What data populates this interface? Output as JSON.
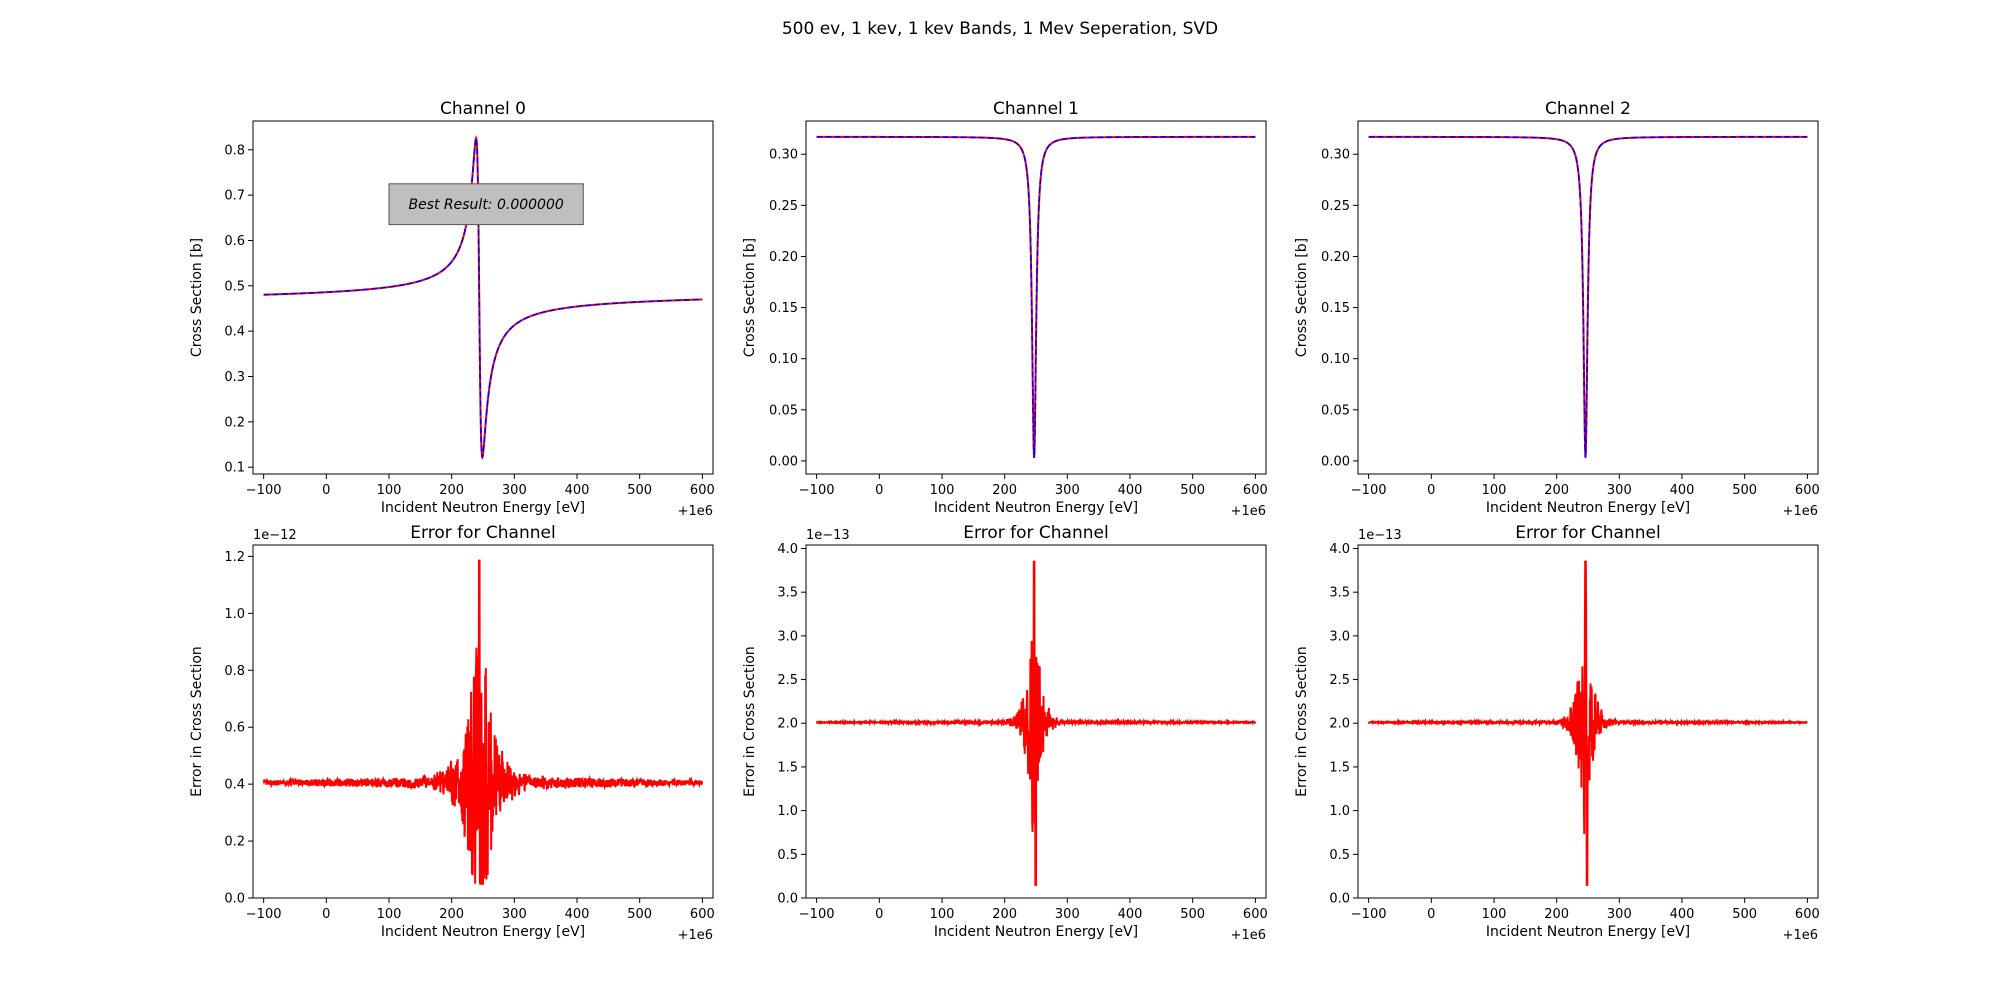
{
  "figure": {
    "suptitle": "500 ev, 1 kev, 1 kev Bands, 1 Mev Seperation, SVD"
  },
  "colors": {
    "curve_red": "#ff0000",
    "curve_blue": "#0000ff",
    "curve_purple": "#7f2aa0",
    "annotation_bg": "#bfbfbf"
  },
  "chart_data": [
    {
      "type": "line",
      "title": "Channel 0",
      "xlabel": "Incident Neutron Energy [eV]",
      "ylabel": "Cross Section [b]",
      "x_offset_label": "+1e6",
      "y_scale_label": "",
      "xlim": [
        -117,
        617
      ],
      "ylim": [
        0.085,
        0.8635
      ],
      "xticks": [
        -100,
        0,
        100,
        200,
        300,
        400,
        500,
        600
      ],
      "yticks": [
        0.1,
        0.2,
        0.3,
        0.4,
        0.5,
        0.6,
        0.7,
        0.8
      ],
      "ytick_labels": [
        "0.1",
        "0.2",
        "0.3",
        "0.4",
        "0.5",
        "0.6",
        "0.7",
        "0.8"
      ],
      "shape": "interference",
      "series": [
        {
          "line_style": "solid",
          "color": "#ff0000"
        },
        {
          "line_style": "dashed",
          "color": "#0000ff"
        }
      ],
      "params": {
        "x0": 244,
        "gamma": 5,
        "base_left": 0.47,
        "base_right": 0.48,
        "peak": 0.826,
        "dip": 0.122
      },
      "annotation": "Best Result: 0.000000"
    },
    {
      "type": "line",
      "title": "Channel 1",
      "xlabel": "Incident Neutron Energy [eV]",
      "ylabel": "Cross Section [b]",
      "x_offset_label": "+1e6",
      "y_scale_label": "",
      "xlim": [
        -117,
        617
      ],
      "ylim": [
        -0.0128,
        0.3325
      ],
      "xticks": [
        -100,
        0,
        100,
        200,
        300,
        400,
        500,
        600
      ],
      "yticks": [
        0,
        0.05,
        0.1,
        0.15,
        0.2,
        0.25,
        0.3
      ],
      "ytick_labels": [
        "0.00",
        "0.05",
        "0.10",
        "0.15",
        "0.20",
        "0.25",
        "0.30"
      ],
      "shape": "dip",
      "series": [
        {
          "line_style": "solid",
          "color": "#ff0000"
        },
        {
          "line_style": "dashed",
          "color": "#0000ff"
        }
      ],
      "params": {
        "x0": 247,
        "gamma": 4,
        "base": 0.317,
        "min": 0.003
      }
    },
    {
      "type": "line",
      "title": "Channel 2",
      "xlabel": "Incident Neutron Energy [eV]",
      "ylabel": "Cross Section [b]",
      "x_offset_label": "+1e6",
      "y_scale_label": "",
      "xlim": [
        -117,
        617
      ],
      "ylim": [
        -0.0128,
        0.3325
      ],
      "xticks": [
        -100,
        0,
        100,
        200,
        300,
        400,
        500,
        600
      ],
      "yticks": [
        0,
        0.05,
        0.1,
        0.15,
        0.2,
        0.25,
        0.3
      ],
      "ytick_labels": [
        "0.00",
        "0.05",
        "0.10",
        "0.15",
        "0.20",
        "0.25",
        "0.30"
      ],
      "shape": "dip",
      "series": [
        {
          "line_style": "solid",
          "color": "#ff0000"
        },
        {
          "line_style": "dashed",
          "color": "#0000ff"
        }
      ],
      "params": {
        "x0": 246,
        "gamma": 4,
        "base": 0.317,
        "min": 0.003
      }
    },
    {
      "type": "line",
      "title": "Error for Channel",
      "xlabel": "Incident Neutron Energy [eV]",
      "ylabel": "Error in Cross Section",
      "x_offset_label": "+1e6",
      "y_scale_label": "1e−12",
      "xlim": [
        -117,
        617
      ],
      "ylim": [
        0,
        1.24
      ],
      "xticks": [
        -100,
        0,
        100,
        200,
        300,
        400,
        500,
        600
      ],
      "yticks": [
        0,
        0.2,
        0.4,
        0.6,
        0.8,
        1.0,
        1.2
      ],
      "ytick_labels": [
        "0.0",
        "0.2",
        "0.4",
        "0.6",
        "0.8",
        "1.0",
        "1.2"
      ],
      "shape": "noise",
      "series": [
        {
          "line_style": "solid",
          "color": "#ff0000"
        }
      ],
      "params": {
        "x0": 244,
        "base": 0.405,
        "noise": 0.006,
        "spike_max": 1.185,
        "spike_min": 0.05,
        "spread": 55
      }
    },
    {
      "type": "line",
      "title": "Error for Channel",
      "xlabel": "Incident Neutron Energy [eV]",
      "ylabel": "Error in Cross Section",
      "x_offset_label": "+1e6",
      "y_scale_label": "1e−13",
      "xlim": [
        -117,
        617
      ],
      "ylim": [
        0,
        4.04
      ],
      "xticks": [
        -100,
        0,
        100,
        200,
        300,
        400,
        500,
        600
      ],
      "yticks": [
        0,
        0.5,
        1.0,
        1.5,
        2.0,
        2.5,
        3.0,
        3.5,
        4.0
      ],
      "ytick_labels": [
        "0.0",
        "0.5",
        "1.0",
        "1.5",
        "2.0",
        "2.5",
        "3.0",
        "3.5",
        "4.0"
      ],
      "shape": "noise",
      "series": [
        {
          "line_style": "solid",
          "color": "#ff0000"
        }
      ],
      "params": {
        "x0": 247,
        "base": 2.01,
        "noise": 0.004,
        "spike_max": 3.85,
        "spike_min": 0.15,
        "spread": 30
      }
    },
    {
      "type": "line",
      "title": "Error for Channel",
      "xlabel": "Incident Neutron Energy [eV]",
      "ylabel": "Error in Cross Section",
      "x_offset_label": "+1e6",
      "y_scale_label": "1e−13",
      "xlim": [
        -117,
        617
      ],
      "ylim": [
        0,
        4.04
      ],
      "xticks": [
        -100,
        0,
        100,
        200,
        300,
        400,
        500,
        600
      ],
      "yticks": [
        0,
        0.5,
        1.0,
        1.5,
        2.0,
        2.5,
        3.0,
        3.5,
        4.0
      ],
      "ytick_labels": [
        "0.0",
        "0.5",
        "1.0",
        "1.5",
        "2.0",
        "2.5",
        "3.0",
        "3.5",
        "4.0"
      ],
      "shape": "noise",
      "series": [
        {
          "line_style": "solid",
          "color": "#ff0000"
        }
      ],
      "params": {
        "x0": 246,
        "base": 2.01,
        "noise": 0.004,
        "spike_max": 3.85,
        "spike_min": 0.15,
        "spread": 30
      }
    }
  ]
}
